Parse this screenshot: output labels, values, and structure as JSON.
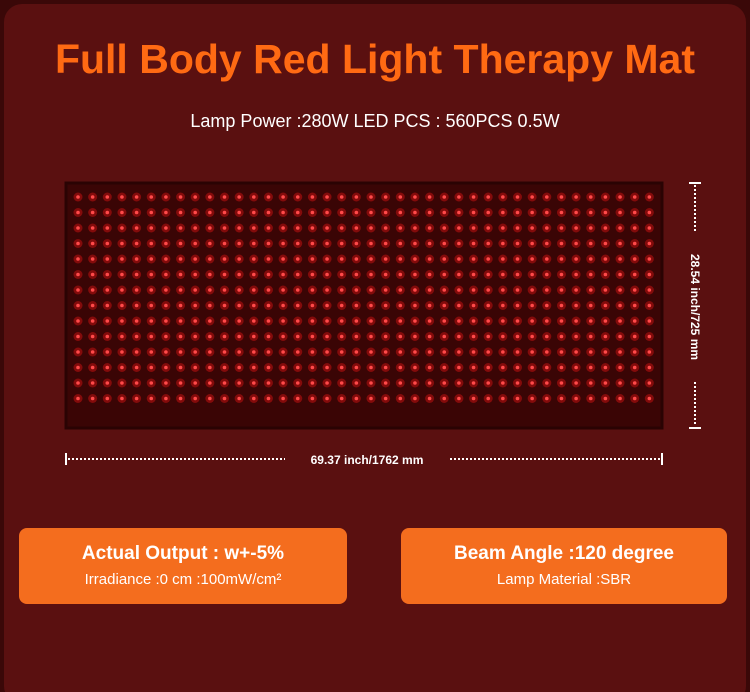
{
  "header": {
    "title": "Full Body Red Light Therapy Mat",
    "subtitle": "Lamp Power :280W  LED PCS : 560PCS 0.5W"
  },
  "dimensions": {
    "width": "69.37 inch/1762 mm",
    "height": "28.54 inch/725 mm"
  },
  "specs": [
    {
      "title": "Actual Output : w+-5%",
      "detail": "Irradiance :0 cm :100mW/cm²"
    },
    {
      "title": "Beam Angle :120 degree",
      "detail": "Lamp Material :SBR"
    }
  ]
}
